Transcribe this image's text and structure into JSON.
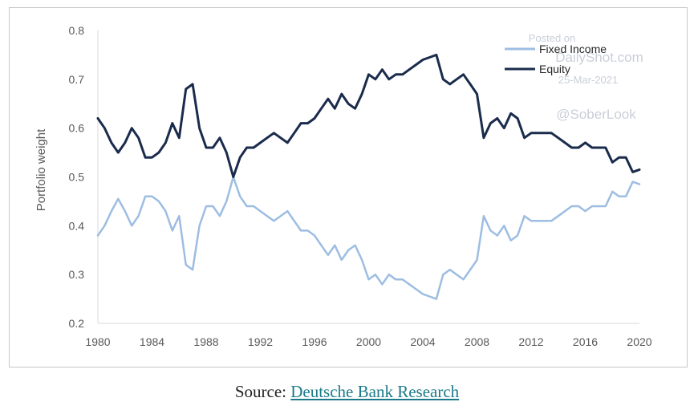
{
  "chart_data": {
    "type": "line",
    "title": "",
    "xlabel": "",
    "ylabel": "Portfolio weight",
    "xlim": [
      1980,
      2020
    ],
    "ylim": [
      0.2,
      0.8
    ],
    "x_ticks": [
      "1980",
      "1984",
      "1988",
      "1992",
      "1996",
      "2000",
      "2004",
      "2008",
      "2012",
      "2016",
      "2020"
    ],
    "y_ticks": [
      "0.2",
      "0.3",
      "0.4",
      "0.5",
      "0.6",
      "0.7",
      "0.8"
    ],
    "grid": false,
    "legend_position": "top-right",
    "series": [
      {
        "name": "Fixed Income",
        "color": "#9dbde2",
        "x": [
          1980,
          1980.5,
          1981,
          1981.5,
          1982,
          1982.5,
          1983,
          1983.5,
          1984,
          1984.5,
          1985,
          1985.5,
          1986,
          1986.5,
          1987,
          1987.5,
          1988,
          1988.5,
          1989,
          1989.5,
          1990,
          1990.5,
          1991,
          1991.5,
          1992,
          1992.5,
          1993,
          1993.5,
          1994,
          1994.5,
          1995,
          1995.5,
          1996,
          1996.5,
          1997,
          1997.5,
          1998,
          1998.5,
          1999,
          1999.5,
          2000,
          2000.5,
          2001,
          2001.5,
          2002,
          2002.5,
          2003,
          2003.5,
          2004,
          2004.5,
          2005,
          2005.5,
          2006,
          2006.5,
          2007,
          2007.5,
          2008,
          2008.5,
          2009,
          2009.5,
          2010,
          2010.5,
          2011,
          2011.5,
          2012,
          2012.5,
          2013,
          2013.5,
          2014,
          2014.5,
          2015,
          2015.5,
          2016,
          2016.5,
          2017,
          2017.5,
          2018,
          2018.5,
          2019,
          2019.5,
          2020
        ],
        "values": [
          0.38,
          0.4,
          0.43,
          0.455,
          0.43,
          0.4,
          0.42,
          0.46,
          0.46,
          0.45,
          0.43,
          0.39,
          0.42,
          0.32,
          0.31,
          0.4,
          0.44,
          0.44,
          0.42,
          0.45,
          0.5,
          0.46,
          0.44,
          0.44,
          0.43,
          0.42,
          0.41,
          0.42,
          0.43,
          0.41,
          0.39,
          0.39,
          0.38,
          0.36,
          0.34,
          0.36,
          0.33,
          0.35,
          0.36,
          0.33,
          0.29,
          0.3,
          0.28,
          0.3,
          0.29,
          0.29,
          0.28,
          0.27,
          0.26,
          0.255,
          0.25,
          0.3,
          0.31,
          0.3,
          0.29,
          0.31,
          0.33,
          0.42,
          0.39,
          0.38,
          0.4,
          0.37,
          0.38,
          0.42,
          0.41,
          0.41,
          0.41,
          0.41,
          0.42,
          0.43,
          0.44,
          0.44,
          0.43,
          0.44,
          0.44,
          0.44,
          0.47,
          0.46,
          0.46,
          0.49,
          0.485
        ]
      },
      {
        "name": "Equity",
        "color": "#1a2b4c",
        "x": [
          1980,
          1980.5,
          1981,
          1981.5,
          1982,
          1982.5,
          1983,
          1983.5,
          1984,
          1984.5,
          1985,
          1985.5,
          1986,
          1986.5,
          1987,
          1987.5,
          1988,
          1988.5,
          1989,
          1989.5,
          1990,
          1990.5,
          1991,
          1991.5,
          1992,
          1992.5,
          1993,
          1993.5,
          1994,
          1994.5,
          1995,
          1995.5,
          1996,
          1996.5,
          1997,
          1997.5,
          1998,
          1998.5,
          1999,
          1999.5,
          2000,
          2000.5,
          2001,
          2001.5,
          2002,
          2002.5,
          2003,
          2003.5,
          2004,
          2004.5,
          2005,
          2005.5,
          2006,
          2006.5,
          2007,
          2007.5,
          2008,
          2008.5,
          2009,
          2009.5,
          2010,
          2010.5,
          2011,
          2011.5,
          2012,
          2012.5,
          2013,
          2013.5,
          2014,
          2014.5,
          2015,
          2015.5,
          2016,
          2016.5,
          2017,
          2017.5,
          2018,
          2018.5,
          2019,
          2019.5,
          2020
        ],
        "values": [
          0.62,
          0.6,
          0.57,
          0.55,
          0.57,
          0.6,
          0.58,
          0.54,
          0.54,
          0.55,
          0.57,
          0.61,
          0.58,
          0.68,
          0.69,
          0.6,
          0.56,
          0.56,
          0.58,
          0.55,
          0.5,
          0.54,
          0.56,
          0.56,
          0.57,
          0.58,
          0.59,
          0.58,
          0.57,
          0.59,
          0.61,
          0.61,
          0.62,
          0.64,
          0.66,
          0.64,
          0.67,
          0.65,
          0.64,
          0.67,
          0.71,
          0.7,
          0.72,
          0.7,
          0.71,
          0.71,
          0.72,
          0.73,
          0.74,
          0.745,
          0.75,
          0.7,
          0.69,
          0.7,
          0.71,
          0.69,
          0.67,
          0.58,
          0.61,
          0.62,
          0.6,
          0.63,
          0.62,
          0.58,
          0.59,
          0.59,
          0.59,
          0.59,
          0.58,
          0.57,
          0.56,
          0.56,
          0.57,
          0.56,
          0.56,
          0.56,
          0.53,
          0.54,
          0.54,
          0.51,
          0.515
        ]
      }
    ]
  },
  "watermark": {
    "posted_on": "Posted on",
    "site": "DailyShot.com",
    "date": "25-Mar-2021",
    "handle": "@SoberLook"
  },
  "caption": {
    "prefix": "Source: ",
    "link_text": "Deutsche Bank Research"
  }
}
